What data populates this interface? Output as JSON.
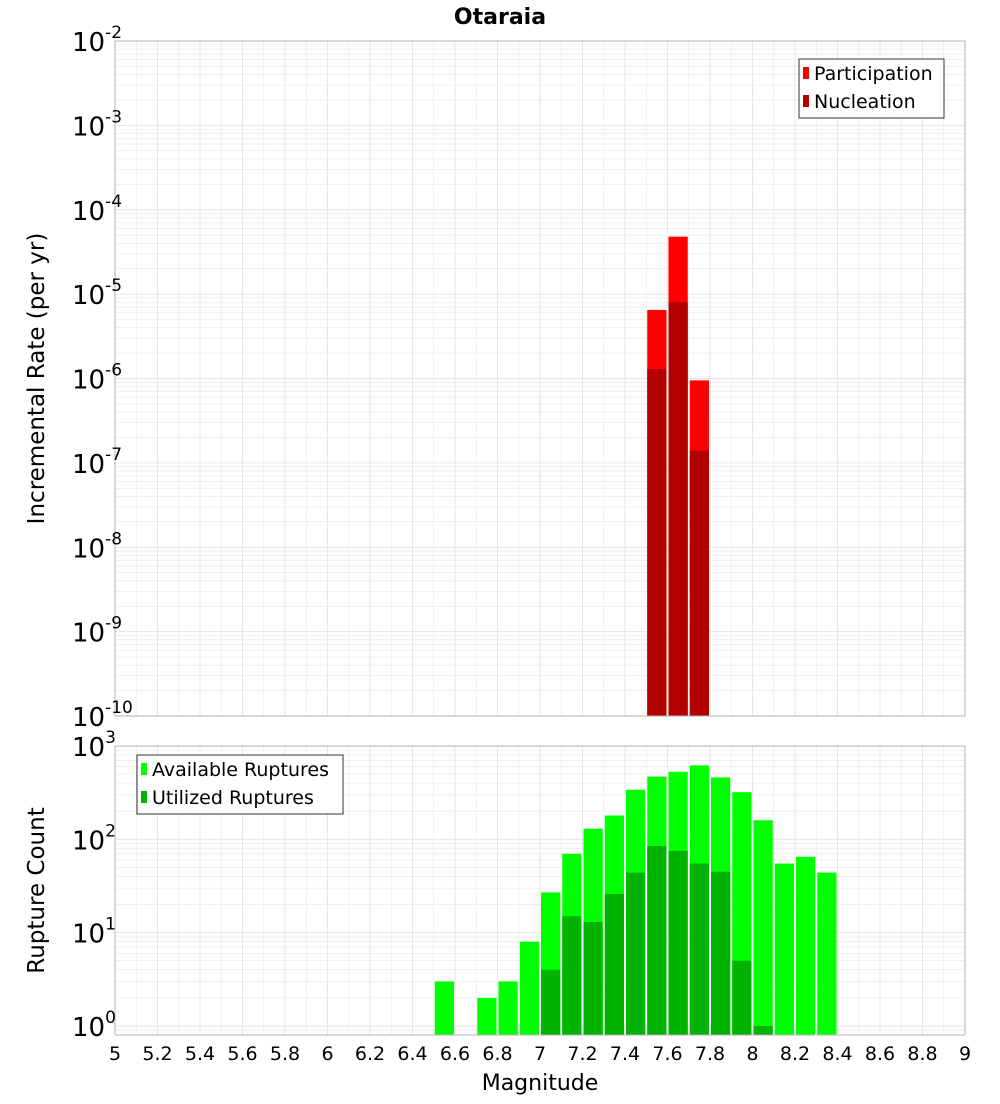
{
  "title": "Otaraia",
  "xlabel": "Magnitude",
  "colors": {
    "participation": "#ff0000",
    "nucleation": "#b30000",
    "available": "#00ff00",
    "utilized": "#00b300",
    "grid": "#e6e6e6",
    "frame": "#b3b3b3"
  },
  "x_ticks": [
    "5",
    "5.2",
    "5.4",
    "5.6",
    "5.8",
    "6",
    "6.2",
    "6.4",
    "6.6",
    "6.8",
    "7",
    "7.2",
    "7.4",
    "7.6",
    "7.8",
    "8",
    "8.2",
    "8.4",
    "8.6",
    "8.8",
    "9"
  ],
  "chart_data": [
    {
      "type": "bar",
      "ylabel": "Incremental Rate (per yr)",
      "yscale": "log",
      "xlim": [
        5,
        9
      ],
      "ylim": [
        1e-10,
        0.01
      ],
      "bin_width": 0.1,
      "y_ticks": [
        {
          "base": "10",
          "exp": "-10"
        },
        {
          "base": "10",
          "exp": "-9"
        },
        {
          "base": "10",
          "exp": "-8"
        },
        {
          "base": "10",
          "exp": "-7"
        },
        {
          "base": "10",
          "exp": "-6"
        },
        {
          "base": "10",
          "exp": "-5"
        },
        {
          "base": "10",
          "exp": "-4"
        },
        {
          "base": "10",
          "exp": "-3"
        },
        {
          "base": "10",
          "exp": "-2"
        }
      ],
      "legend_position": "top-right",
      "series": [
        {
          "name": "Participation",
          "x": [
            7.55,
            7.65,
            7.75
          ],
          "values": [
            6.5e-06,
            4.8e-05,
            9.5e-07
          ]
        },
        {
          "name": "Nucleation",
          "x": [
            7.55,
            7.65,
            7.75
          ],
          "values": [
            1.3e-06,
            8e-06,
            1.4e-07
          ]
        }
      ]
    },
    {
      "type": "bar",
      "ylabel": "Rupture Count",
      "yscale": "log",
      "xlim": [
        5,
        9
      ],
      "ylim": [
        0.8,
        1000
      ],
      "bin_width": 0.1,
      "y_ticks": [
        {
          "base": "10",
          "exp": "0"
        },
        {
          "base": "10",
          "exp": "1"
        },
        {
          "base": "10",
          "exp": "2"
        },
        {
          "base": "10",
          "exp": "3"
        }
      ],
      "legend_position": "top-left",
      "series": [
        {
          "name": "Available Ruptures",
          "x": [
            6.55,
            6.75,
            6.85,
            6.95,
            7.05,
            7.15,
            7.25,
            7.35,
            7.45,
            7.55,
            7.65,
            7.75,
            7.85,
            7.95,
            8.05,
            8.15,
            8.25,
            8.35
          ],
          "values": [
            3,
            2,
            3,
            8,
            27,
            70,
            130,
            180,
            340,
            470,
            530,
            620,
            460,
            320,
            160,
            55,
            65,
            44
          ]
        },
        {
          "name": "Utilized Ruptures",
          "x": [
            7.05,
            7.15,
            7.25,
            7.35,
            7.45,
            7.55,
            7.65,
            7.75,
            7.85,
            7.95,
            8.05
          ],
          "values": [
            4,
            15,
            13,
            26,
            44,
            85,
            75,
            55,
            45,
            5,
            1
          ]
        }
      ]
    }
  ]
}
